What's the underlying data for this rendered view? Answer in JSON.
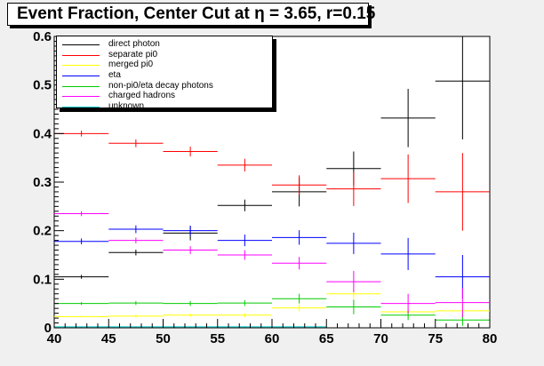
{
  "title": "Event Fraction, Center Cut at η = 3.65, r=0.15",
  "chart_data": {
    "type": "scatter",
    "title": "Event Fraction, Center Cut at η = 3.65, r=0.15",
    "xlabel": "",
    "ylabel": "",
    "xlim": [
      40,
      80
    ],
    "ylim": [
      0,
      0.6
    ],
    "x_ticks": [
      "40",
      "45",
      "50",
      "55",
      "60",
      "65",
      "70",
      "75",
      "80"
    ],
    "y_ticks": [
      "0",
      "0.1",
      "0.2",
      "0.3",
      "0.4",
      "0.5",
      "0.6"
    ],
    "x_bin_edges": [
      40,
      45,
      50,
      55,
      60,
      65,
      70,
      75,
      80
    ],
    "legend_position": "top-left",
    "series": [
      {
        "name": "direct photon",
        "color": "#000000",
        "x": [
          42.5,
          47.5,
          52.5,
          57.5,
          62.5,
          67.5,
          72.5,
          77.5
        ],
        "y": [
          0.105,
          0.155,
          0.195,
          0.252,
          0.28,
          0.328,
          0.432,
          0.508
        ],
        "yerr": [
          0.004,
          0.006,
          0.015,
          0.012,
          0.03,
          0.035,
          0.06,
          0.12
        ]
      },
      {
        "name": "separate pi0",
        "color": "#ff0000",
        "x": [
          42.5,
          47.5,
          52.5,
          57.5,
          62.5,
          67.5,
          72.5,
          77.5
        ],
        "y": [
          0.4,
          0.38,
          0.363,
          0.335,
          0.294,
          0.286,
          0.307,
          0.28
        ],
        "yerr": [
          0.006,
          0.008,
          0.01,
          0.013,
          0.02,
          0.035,
          0.05,
          0.08
        ]
      },
      {
        "name": "merged pi0",
        "color": "#ffff00",
        "x": [
          42.5,
          47.5,
          52.5,
          57.5,
          62.5,
          67.5,
          72.5,
          77.5
        ],
        "y": [
          0.023,
          0.024,
          0.026,
          0.026,
          0.041,
          0.07,
          0.033,
          0.035
        ],
        "yerr": [
          0.002,
          0.003,
          0.003,
          0.004,
          0.007,
          0.01,
          0.01,
          0.015
        ]
      },
      {
        "name": "eta",
        "color": "#0000ff",
        "x": [
          42.5,
          47.5,
          52.5,
          57.5,
          62.5,
          67.5,
          72.5,
          77.5
        ],
        "y": [
          0.178,
          0.203,
          0.2,
          0.18,
          0.186,
          0.174,
          0.152,
          0.105
        ],
        "yerr": [
          0.006,
          0.008,
          0.01,
          0.012,
          0.015,
          0.022,
          0.033,
          0.045
        ]
      },
      {
        "name": "non-pi0/eta decay photons",
        "color": "#00cc00",
        "x": [
          42.5,
          47.5,
          52.5,
          57.5,
          62.5,
          67.5,
          72.5,
          77.5
        ],
        "y": [
          0.05,
          0.051,
          0.05,
          0.051,
          0.06,
          0.043,
          0.026,
          0.016
        ],
        "yerr": [
          0.003,
          0.004,
          0.005,
          0.006,
          0.01,
          0.015,
          0.01,
          0.012
        ]
      },
      {
        "name": "charged hadrons",
        "color": "#ff00ff",
        "x": [
          42.5,
          47.5,
          52.5,
          57.5,
          62.5,
          67.5,
          72.5,
          77.5
        ],
        "y": [
          0.235,
          0.18,
          0.16,
          0.15,
          0.133,
          0.095,
          0.05,
          0.052
        ],
        "yerr": [
          0.005,
          0.006,
          0.008,
          0.01,
          0.013,
          0.022,
          0.02,
          0.03
        ]
      },
      {
        "name": "unknown",
        "color": "#00cccc",
        "x": [
          42.5,
          47.5,
          52.5,
          57.5,
          62.5
        ],
        "y": [
          0.002,
          0.002,
          0.002,
          0.002,
          0.002
        ],
        "yerr": [
          0.001,
          0.001,
          0.001,
          0.001,
          0.001
        ]
      }
    ]
  }
}
